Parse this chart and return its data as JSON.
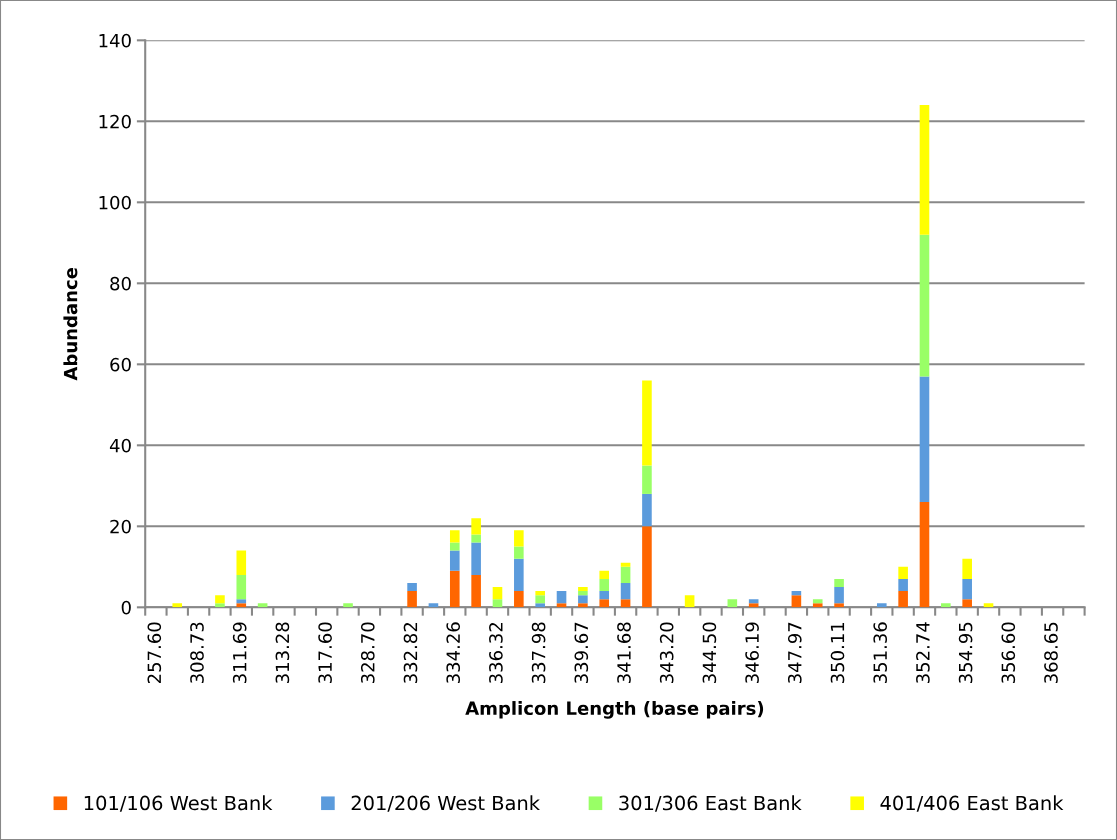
{
  "chart_data": {
    "type": "bar",
    "stacked": true,
    "xlabel": "Amplicon Length (base pairs)",
    "ylabel": "Abundance",
    "categories": [
      "257.60",
      null,
      "308.73",
      null,
      "311.69",
      null,
      "313.28",
      null,
      "317.60",
      null,
      "328.70",
      null,
      "332.82",
      null,
      "334.26",
      null,
      "336.32",
      null,
      "337.98",
      null,
      "339.67",
      null,
      "341.68",
      null,
      "343.20",
      null,
      "344.50",
      null,
      "346.19",
      null,
      "347.97",
      null,
      "350.11",
      null,
      "351.36",
      null,
      "352.74",
      null,
      "354.95",
      null,
      "356.60",
      null,
      "368.65",
      null
    ],
    "series": [
      {
        "name": "101/106 West Bank",
        "color": "#ff6600",
        "values": [
          0,
          0,
          0,
          0,
          1,
          0,
          0,
          0,
          0,
          0,
          0,
          0,
          4,
          0,
          9,
          8,
          0,
          4,
          0,
          1,
          1,
          2,
          2,
          20,
          0,
          0,
          0,
          0,
          1,
          0,
          3,
          1,
          1,
          0,
          0,
          4,
          26,
          0,
          2,
          0,
          0,
          0,
          0,
          0
        ]
      },
      {
        "name": "201/206 West Bank",
        "color": "#5b9bdc",
        "values": [
          0,
          0,
          0,
          0,
          1,
          0,
          0,
          0,
          0,
          0,
          0,
          0,
          2,
          1,
          5,
          8,
          0,
          8,
          1,
          3,
          2,
          2,
          4,
          8,
          0,
          0,
          0,
          0,
          1,
          0,
          1,
          0,
          4,
          0,
          1,
          3,
          31,
          0,
          5,
          0,
          0,
          0,
          0,
          0
        ]
      },
      {
        "name": "301/306 East Bank",
        "color": "#99ff66",
        "values": [
          0,
          0,
          0,
          1,
          6,
          1,
          0,
          0,
          0,
          1,
          0,
          0,
          0,
          0,
          2,
          2,
          2,
          3,
          2,
          0,
          1,
          3,
          4,
          7,
          0,
          0,
          0,
          2,
          0,
          0,
          0,
          1,
          2,
          0,
          0,
          0,
          35,
          1,
          0,
          0,
          0,
          0,
          0,
          0
        ]
      },
      {
        "name": "401/406 East Bank",
        "color": "#ffff00",
        "values": [
          0,
          1,
          0,
          2,
          6,
          0,
          0,
          0,
          0,
          0,
          0,
          0,
          0,
          0,
          3,
          4,
          3,
          4,
          1,
          0,
          1,
          2,
          1,
          21,
          0,
          3,
          0,
          0,
          0,
          0,
          0,
          0,
          0,
          0,
          0,
          3,
          32,
          0,
          5,
          1,
          0,
          0,
          0,
          0
        ]
      }
    ],
    "ylim": [
      0,
      140
    ],
    "yticks": [
      0,
      20,
      40,
      60,
      80,
      100,
      120,
      140
    ],
    "grid": "y",
    "legend": "bottom"
  }
}
